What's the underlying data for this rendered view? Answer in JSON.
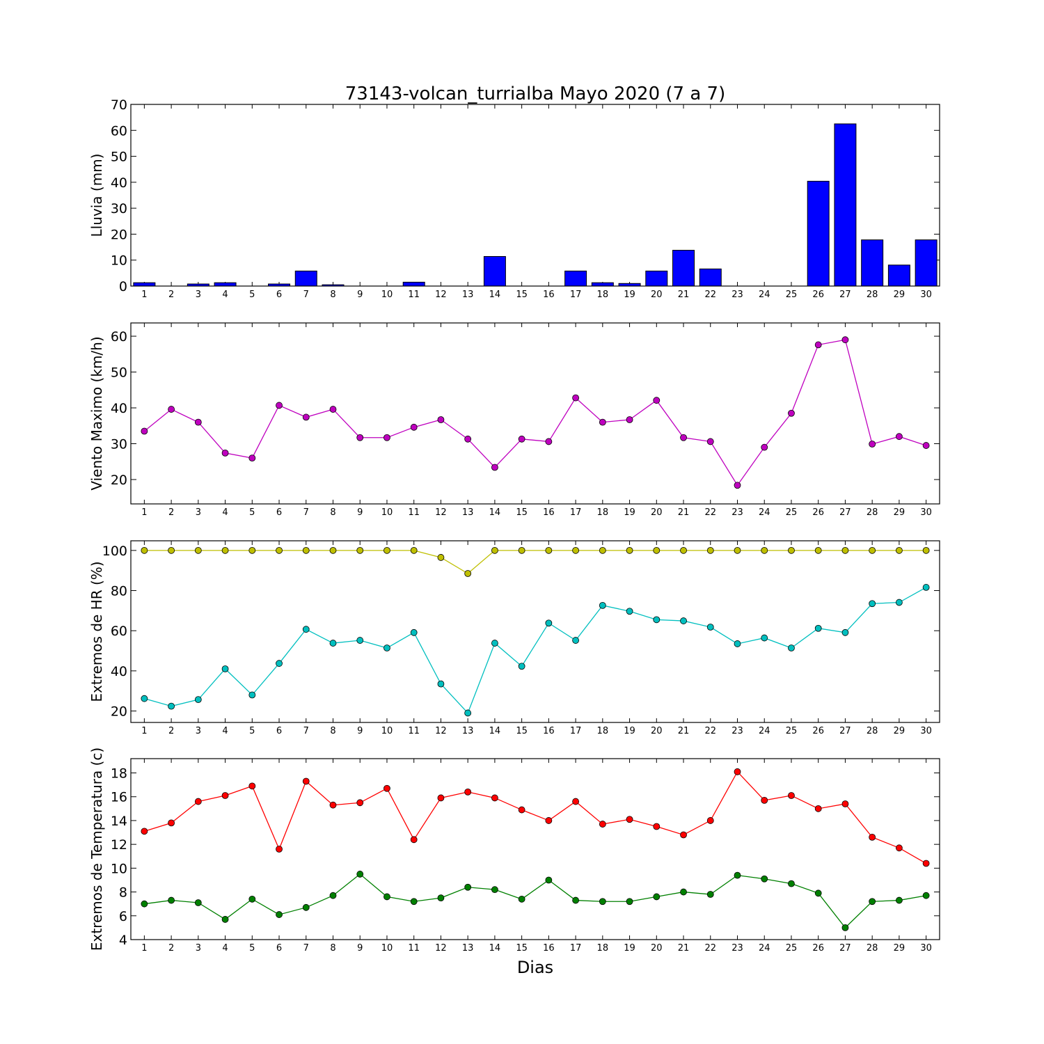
{
  "figure": {
    "title": "73143-volcan_turrialba Mayo 2020  (7 a 7)",
    "xlabel": "Dias"
  },
  "chart_data": [
    {
      "type": "bar",
      "ylabel": "Lluvia (mm)",
      "ylim": [
        0,
        70
      ],
      "yticks": [
        0,
        10,
        20,
        30,
        40,
        50,
        60,
        70
      ],
      "categories": [
        "1",
        "2",
        "3",
        "4",
        "5",
        "6",
        "7",
        "8",
        "9",
        "10",
        "11",
        "12",
        "13",
        "14",
        "15",
        "16",
        "17",
        "18",
        "19",
        "20",
        "21",
        "22",
        "23",
        "24",
        "25",
        "26",
        "27",
        "28",
        "29",
        "30"
      ],
      "series": [
        {
          "color": "#0000ff",
          "values": [
            1.3,
            0,
            0.8,
            1.3,
            0,
            0.8,
            5.8,
            0.5,
            0,
            0,
            1.5,
            0,
            0,
            11.4,
            0,
            0,
            5.8,
            1.3,
            1.0,
            5.8,
            13.8,
            6.6,
            0,
            0,
            0,
            40.4,
            62.5,
            17.8,
            8.1,
            17.8
          ]
        }
      ]
    },
    {
      "type": "line",
      "ylabel": "Viento Maximo (km/h)",
      "ylim": [
        13.2,
        63.7
      ],
      "yticks": [
        20,
        30,
        40,
        50,
        60
      ],
      "categories": [
        "1",
        "2",
        "3",
        "4",
        "5",
        "6",
        "7",
        "8",
        "9",
        "10",
        "11",
        "12",
        "13",
        "14",
        "15",
        "16",
        "17",
        "18",
        "19",
        "20",
        "21",
        "22",
        "23",
        "24",
        "25",
        "26",
        "27",
        "28",
        "29",
        "30"
      ],
      "series": [
        {
          "color": "#bf00bf",
          "values": [
            33.5,
            39.6,
            36.0,
            27.4,
            26.0,
            40.7,
            37.4,
            39.6,
            31.7,
            31.7,
            34.6,
            36.7,
            31.3,
            23.4,
            31.3,
            30.6,
            42.8,
            36.0,
            36.7,
            42.1,
            31.7,
            30.6,
            18.4,
            29.0,
            38.5,
            57.6,
            59.0,
            29.9,
            32.0,
            29.5
          ]
        }
      ]
    },
    {
      "type": "line",
      "ylabel": "Extremos de HR (%)",
      "ylim": [
        14.3,
        104.8
      ],
      "yticks": [
        20,
        40,
        60,
        80,
        100
      ],
      "categories": [
        "1",
        "2",
        "3",
        "4",
        "5",
        "6",
        "7",
        "8",
        "9",
        "10",
        "11",
        "12",
        "13",
        "14",
        "15",
        "16",
        "17",
        "18",
        "19",
        "20",
        "21",
        "22",
        "23",
        "24",
        "25",
        "26",
        "27",
        "28",
        "29",
        "30"
      ],
      "series": [
        {
          "color": "#bfbf00",
          "values": [
            100,
            100,
            100,
            100,
            100,
            100,
            100,
            100,
            100,
            100,
            100,
            96.5,
            88.5,
            100,
            100,
            100,
            100,
            100,
            100,
            100,
            100,
            100,
            100,
            100,
            100,
            100,
            100,
            100,
            100,
            100
          ]
        },
        {
          "color": "#00bfbf",
          "values": [
            26.2,
            22.4,
            25.7,
            41.0,
            28.0,
            43.7,
            60.7,
            53.8,
            55.2,
            51.4,
            59.1,
            33.5,
            19.0,
            53.8,
            42.3,
            63.8,
            55.2,
            72.6,
            69.7,
            65.5,
            64.9,
            61.8,
            53.5,
            56.4,
            51.4,
            61.2,
            59.1,
            73.5,
            74.1,
            81.6
          ]
        }
      ]
    },
    {
      "type": "line",
      "ylabel": "Extremos de Temperatura (c)",
      "xlabel": "Dias",
      "ylim": [
        4,
        19.2
      ],
      "yticks": [
        4,
        6,
        8,
        10,
        12,
        14,
        16,
        18
      ],
      "categories": [
        "1",
        "2",
        "3",
        "4",
        "5",
        "6",
        "7",
        "8",
        "9",
        "10",
        "11",
        "12",
        "13",
        "14",
        "15",
        "16",
        "17",
        "18",
        "19",
        "20",
        "21",
        "22",
        "23",
        "24",
        "25",
        "26",
        "27",
        "28",
        "29",
        "30"
      ],
      "series": [
        {
          "color": "#ff0000",
          "values": [
            13.1,
            13.8,
            15.6,
            16.1,
            16.9,
            11.6,
            17.3,
            15.3,
            15.5,
            16.7,
            12.4,
            15.9,
            16.4,
            15.9,
            14.9,
            14.0,
            15.6,
            13.7,
            14.1,
            13.5,
            12.8,
            14.0,
            18.1,
            15.7,
            16.1,
            15.0,
            15.4,
            12.6,
            11.7,
            10.4
          ]
        },
        {
          "color": "#008000",
          "values": [
            7.0,
            7.3,
            7.1,
            5.7,
            7.4,
            6.1,
            6.7,
            7.7,
            9.5,
            7.6,
            7.2,
            7.5,
            8.4,
            8.2,
            7.4,
            9.0,
            7.3,
            7.2,
            7.2,
            7.6,
            8.0,
            7.8,
            9.4,
            9.1,
            8.7,
            7.9,
            5.0,
            7.2,
            7.3,
            7.7
          ]
        }
      ]
    }
  ]
}
